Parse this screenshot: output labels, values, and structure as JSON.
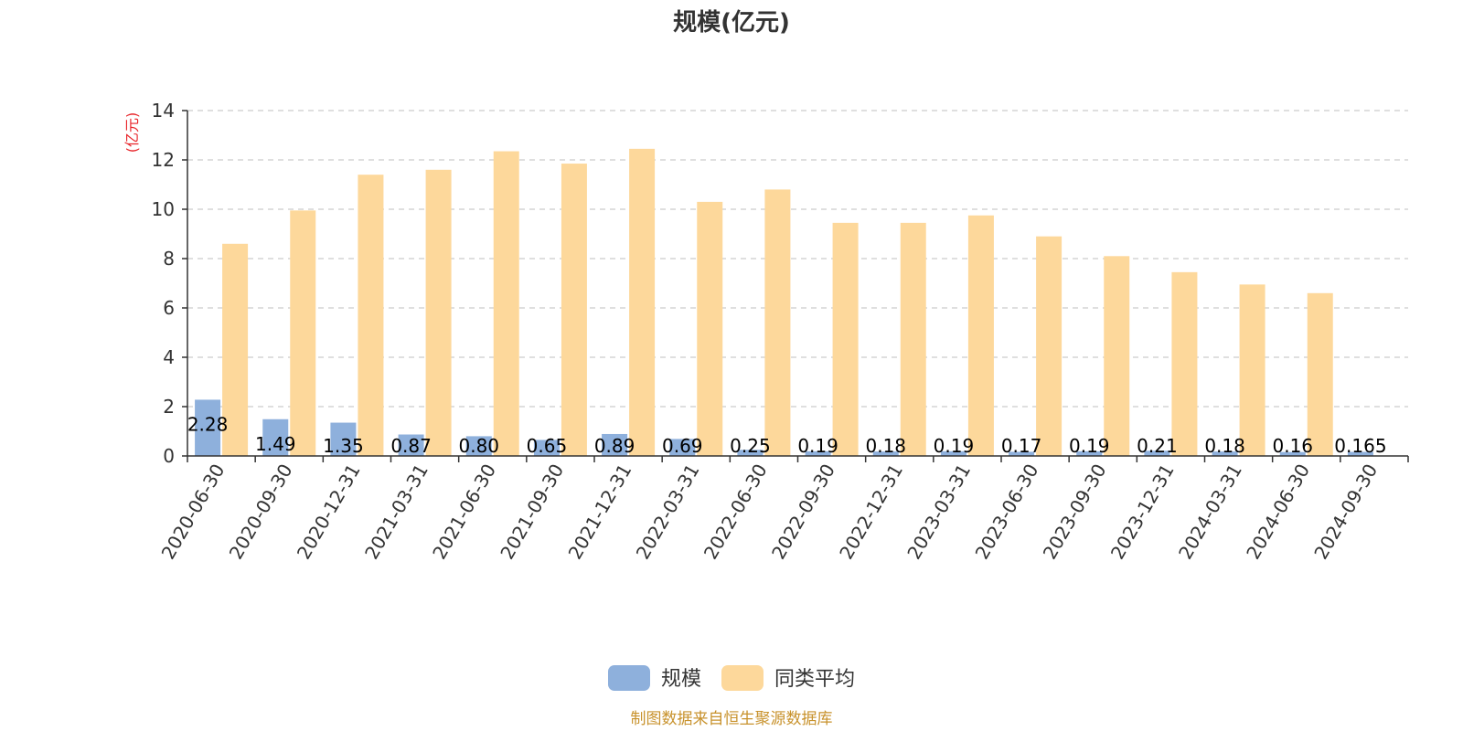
{
  "chart_data": {
    "type": "bar",
    "title": "规模(亿元)",
    "ylabel": "(亿元)",
    "ylim": [
      0,
      14
    ],
    "yticks": [
      0,
      2,
      4,
      6,
      8,
      10,
      12,
      14
    ],
    "grid": true,
    "legend_position": "bottom",
    "categories": [
      "2020-06-30",
      "2020-09-30",
      "2020-12-31",
      "2021-03-31",
      "2021-06-30",
      "2021-09-30",
      "2021-12-31",
      "2022-03-31",
      "2022-06-30",
      "2022-09-30",
      "2022-12-31",
      "2023-03-31",
      "2023-06-30",
      "2023-09-30",
      "2023-12-31",
      "2024-03-31",
      "2024-06-30",
      "2024-09-30"
    ],
    "series": [
      {
        "name": "规模",
        "color": "#8eb0dc",
        "values": [
          2.28,
          1.49,
          1.35,
          0.87,
          0.8,
          0.65,
          0.89,
          0.69,
          0.25,
          0.19,
          0.18,
          0.19,
          0.17,
          0.19,
          0.21,
          0.18,
          0.16,
          0.165
        ],
        "labels": [
          "2.28",
          "1.49",
          "1.35",
          "0.87",
          "0.80",
          "0.65",
          "0.89",
          "0.69",
          "0.25",
          "0.19",
          "0.18",
          "0.19",
          "0.17",
          "0.19",
          "0.21",
          "0.18",
          "0.16",
          "0.165"
        ]
      },
      {
        "name": "同类平均",
        "color": "#fdd89b",
        "values": [
          8.6,
          9.95,
          11.4,
          11.6,
          12.35,
          11.85,
          12.45,
          10.3,
          10.8,
          9.45,
          9.45,
          9.75,
          8.9,
          8.1,
          7.45,
          6.95,
          6.6,
          null
        ]
      }
    ],
    "source": "制图数据来自恒生聚源数据库"
  }
}
